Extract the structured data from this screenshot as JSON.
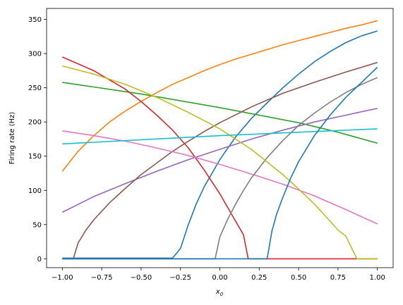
{
  "chart_data": {
    "type": "line",
    "title": "",
    "xlabel_main": "x",
    "xlabel_sub": "0",
    "ylabel": "Firing rate (Hz)",
    "xlim": [
      -1.1,
      1.1
    ],
    "ylim": [
      -13,
      366
    ],
    "xticks": [
      -1.0,
      -0.75,
      -0.5,
      -0.25,
      0.0,
      0.25,
      0.5,
      0.75,
      1.0
    ],
    "xtick_labels": [
      "−1.00",
      "−0.75",
      "−0.50",
      "−0.25",
      "0.00",
      "0.25",
      "0.50",
      "0.75",
      "1.00"
    ],
    "yticks": [
      0,
      50,
      100,
      150,
      200,
      250,
      300,
      350
    ],
    "ytick_labels": [
      "0",
      "50",
      "100",
      "150",
      "200",
      "250",
      "300",
      "350"
    ],
    "grid": false,
    "series": [
      {
        "color": "#1f77b4",
        "x": [
          -1.0,
          -0.3,
          -0.25,
          -0.2,
          -0.15,
          -0.1,
          0.0,
          0.1,
          0.2,
          0.3,
          0.4,
          0.5,
          0.6,
          0.7,
          0.8,
          0.9,
          1.0
        ],
        "y": [
          1,
          1,
          15,
          50,
          80,
          105,
          145,
          178,
          205,
          228,
          250,
          270,
          288,
          303,
          316,
          326,
          333
        ]
      },
      {
        "color": "#ff7f0e",
        "x": [
          -1.0,
          -0.9,
          -0.8,
          -0.7,
          -0.6,
          -0.5,
          -0.4,
          -0.3,
          -0.2,
          -0.1,
          0.0,
          0.1,
          0.2,
          0.3,
          0.4,
          0.5,
          0.6,
          0.7,
          0.8,
          0.9,
          1.0
        ],
        "y": [
          128,
          157,
          180,
          200,
          216,
          230,
          243,
          255,
          265,
          275,
          284,
          292,
          299,
          306,
          313,
          319,
          325,
          331,
          337,
          342,
          348
        ]
      },
      {
        "color": "#2ca02c",
        "x": [
          -1.0,
          -0.5,
          0.0,
          0.5,
          0.75,
          1.0
        ],
        "y": [
          258,
          241,
          221,
          199,
          185,
          169
        ]
      },
      {
        "color": "#d62728",
        "x": [
          -1.0,
          -0.8,
          -0.6,
          -0.5,
          -0.4,
          -0.3,
          -0.2,
          -0.1,
          0.0,
          0.1,
          0.15,
          0.18,
          1.0
        ],
        "y": [
          295,
          275,
          248,
          230,
          210,
          188,
          162,
          130,
          95,
          55,
          35,
          0,
          0
        ]
      },
      {
        "color": "#9467bd",
        "x": [
          -1.0,
          -0.8,
          -0.6,
          -0.4,
          -0.2,
          0.0,
          0.2,
          0.4,
          0.6,
          0.8,
          1.0
        ],
        "y": [
          68,
          91,
          110,
          128,
          145,
          160,
          175,
          188,
          200,
          210,
          220
        ]
      },
      {
        "color": "#8c564b",
        "x": [
          -1.0,
          -0.93,
          -0.9,
          -0.85,
          -0.8,
          -0.7,
          -0.6,
          -0.5,
          -0.4,
          -0.3,
          -0.2,
          -0.1,
          0.0,
          0.2,
          0.4,
          0.6,
          0.8,
          1.0
        ],
        "y": [
          0,
          0,
          23,
          42,
          57,
          82,
          103,
          123,
          140,
          157,
          172,
          186,
          199,
          222,
          242,
          258,
          273,
          287
        ]
      },
      {
        "color": "#e377c2",
        "x": [
          -1.0,
          -0.8,
          -0.6,
          -0.4,
          -0.2,
          0.0,
          0.2,
          0.4,
          0.6,
          0.8,
          1.0
        ],
        "y": [
          187,
          180,
          172,
          162,
          151,
          138,
          124,
          109,
          92,
          72,
          51
        ]
      },
      {
        "color": "#7f7f7f",
        "x": [
          -1.0,
          -0.03,
          0.0,
          0.05,
          0.1,
          0.15,
          0.2,
          0.3,
          0.4,
          0.5,
          0.6,
          0.7,
          0.8,
          0.9,
          1.0
        ],
        "y": [
          0,
          0,
          32,
          58,
          80,
          100,
          118,
          148,
          173,
          195,
          213,
          229,
          243,
          255,
          265
        ]
      },
      {
        "color": "#bcbd22",
        "x": [
          -1.0,
          -0.8,
          -0.6,
          -0.4,
          -0.2,
          0.0,
          0.2,
          0.4,
          0.5,
          0.6,
          0.7,
          0.75,
          0.8,
          0.87,
          1.0
        ],
        "y": [
          282,
          270,
          255,
          236,
          214,
          190,
          160,
          123,
          102,
          80,
          55,
          42,
          33,
          0,
          0
        ]
      },
      {
        "color": "#17becf",
        "x": [
          -1.0,
          -0.5,
          0.0,
          0.5,
          1.0
        ],
        "y": [
          168,
          174,
          180,
          185,
          190
        ]
      },
      {
        "color": "#1f77b4",
        "x": [
          -1.0,
          0.3,
          0.33,
          0.36,
          0.4,
          0.45,
          0.5,
          0.6,
          0.7,
          0.8,
          0.9,
          1.0
        ],
        "y": [
          0,
          0,
          40,
          65,
          90,
          118,
          142,
          180,
          210,
          236,
          258,
          280
        ]
      }
    ]
  }
}
